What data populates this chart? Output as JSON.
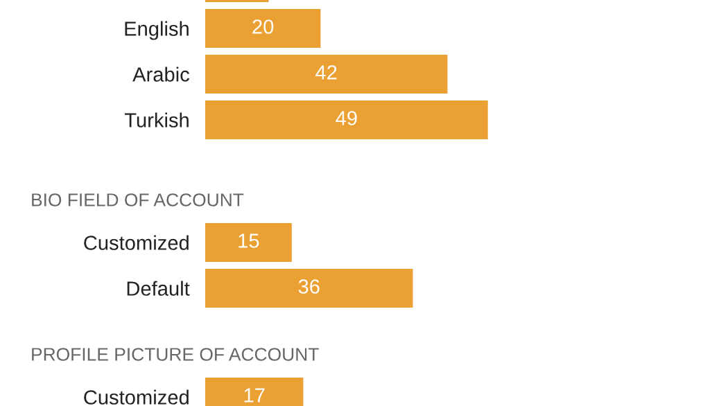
{
  "chart_data": [
    {
      "type": "bar",
      "orientation": "horizontal",
      "categories": [
        null,
        "English",
        "Arabic",
        "Turkish"
      ],
      "values": [
        11,
        20,
        42,
        49
      ],
      "value_labels": [
        null,
        "20",
        "42",
        "49"
      ],
      "color": "#eba033",
      "tick_labels": "y"
    },
    {
      "type": "bar",
      "orientation": "horizontal",
      "title": "BIO FIELD OF ACCOUNT",
      "categories": [
        "Customized",
        "Default"
      ],
      "values": [
        15,
        36
      ],
      "data_labels": true,
      "color": "#eba033",
      "tick_labels": "y"
    },
    {
      "type": "bar",
      "orientation": "horizontal",
      "title": "PROFILE PICTURE OF ACCOUNT",
      "categories": [
        "Customized"
      ],
      "values": [
        17
      ],
      "data_labels": true,
      "color": "#eba033",
      "tick_labels": "y"
    }
  ]
}
